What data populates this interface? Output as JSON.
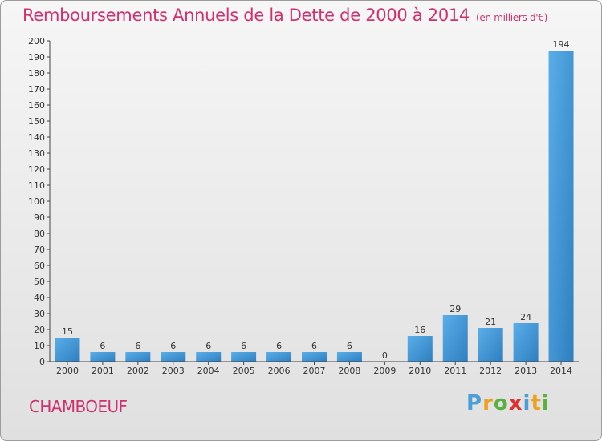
{
  "chart_data": {
    "type": "bar",
    "title": "Remboursements Annuels de la Dette de 2000 à 2014",
    "subtitle": "(en milliers d'€)",
    "categories": [
      "2000",
      "2001",
      "2002",
      "2003",
      "2004",
      "2005",
      "2006",
      "2007",
      "2008",
      "2009",
      "2010",
      "2011",
      "2012",
      "2013",
      "2014"
    ],
    "values": [
      15,
      6,
      6,
      6,
      6,
      6,
      6,
      6,
      6,
      0,
      16,
      29,
      21,
      24,
      194
    ],
    "ylim": [
      0,
      200
    ],
    "ytick_step": 10,
    "xlabel": "",
    "ylabel": "",
    "grid": false,
    "bar_color": "#3a8fd4"
  },
  "footer": {
    "commune": "CHAMBOEUF",
    "brand": "Proxiti"
  }
}
